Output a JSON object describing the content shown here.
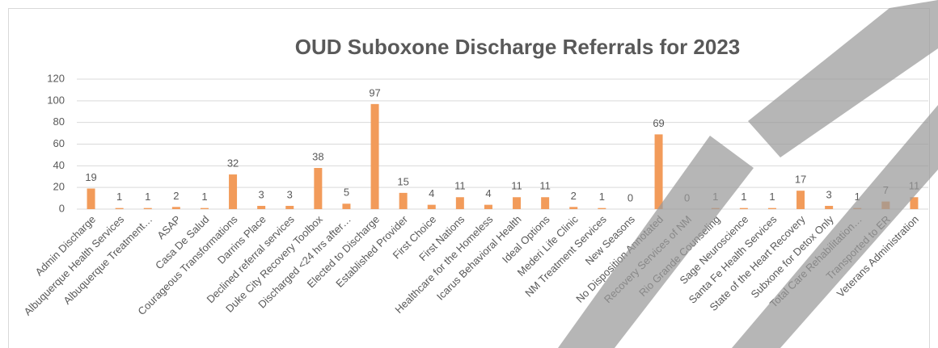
{
  "chart_data": {
    "type": "bar",
    "title": "OUD Suboxone Discharge Referrals for 2023",
    "categories": [
      "Admin Discharge",
      "Albuquerque Health Services",
      "Albuquerque Treatment…",
      "ASAP",
      "Casa De Salud",
      "Courageous Transformations",
      "Darrins Place",
      "Declined referral services",
      "Duke City Recovery Toolbox",
      "Discharged <24 hrs after…",
      "Elected to Discharge",
      "Established Provider",
      "First Choice",
      "First Nations",
      "Healthcare for the Homeless",
      "Icarus Behavioral Health",
      "Ideal Options",
      "Mederi Life Clinic",
      "NM Treatment Services",
      "New Seasons",
      "No Disposition Annotated",
      "Recovery Services of NM",
      "Rio Grande Counseling",
      "Sage Neuroscience",
      "Santa Fe Health Services",
      "State of the Heart Recovery",
      "Subxone for Detox Only",
      "Total Care Rehabilitation…",
      "Transported to ER",
      "Veterans Administration"
    ],
    "values": [
      19,
      1,
      1,
      2,
      1,
      32,
      3,
      3,
      38,
      5,
      97,
      15,
      4,
      11,
      4,
      11,
      11,
      2,
      1,
      0,
      69,
      0,
      1,
      1,
      1,
      17,
      3,
      1,
      7,
      11
    ],
    "color": "#f29b5a",
    "ylim": [
      0,
      120
    ],
    "yticks": [
      0,
      20,
      40,
      60,
      80,
      100,
      120
    ],
    "grid": true
  }
}
